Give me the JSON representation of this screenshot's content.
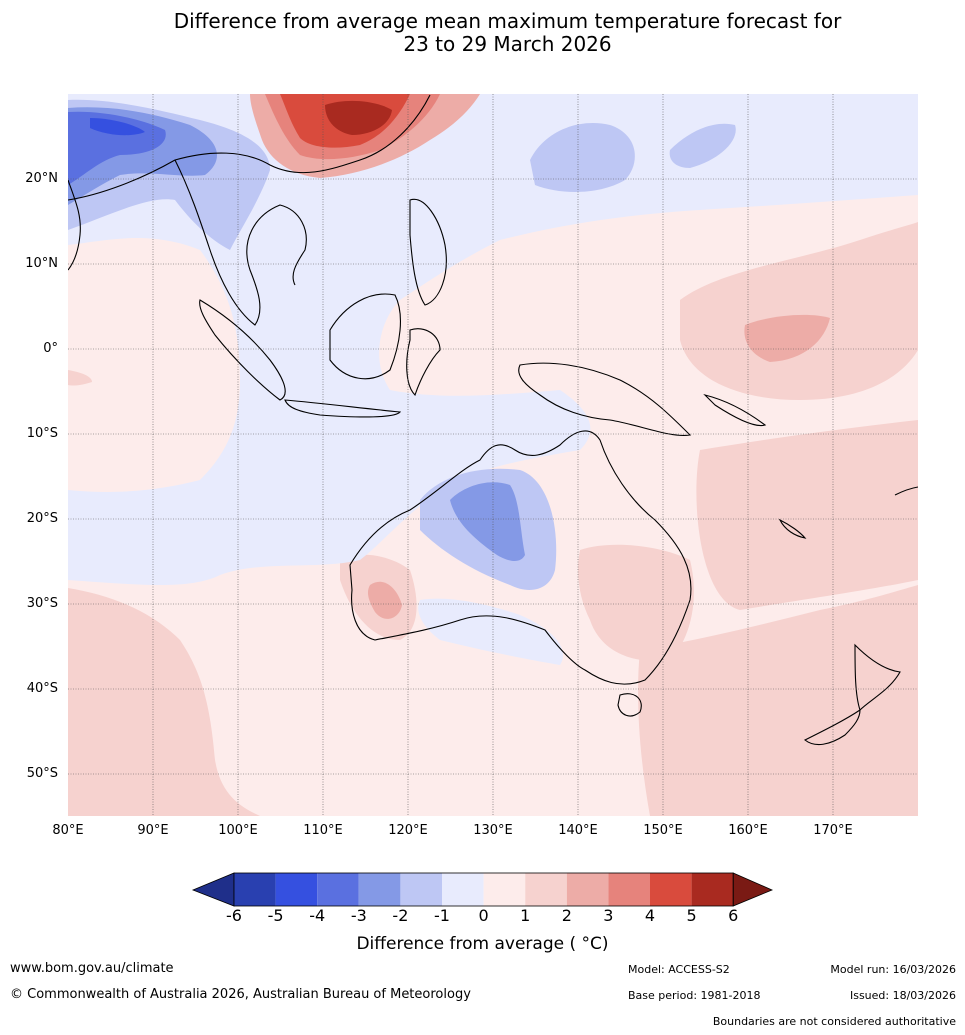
{
  "title": {
    "line1": "Difference from average mean maximum temperature forecast for",
    "line2": "23 to 29 March 2026"
  },
  "map": {
    "lat_labels": [
      "20°N",
      "10°N",
      "0°",
      "10°S",
      "20°S",
      "30°S",
      "40°S",
      "50°S"
    ],
    "lon_labels": [
      "80°E",
      "90°E",
      "100°E",
      "110°E",
      "120°E",
      "130°E",
      "140°E",
      "150°E",
      "160°E",
      "170°E"
    ],
    "lat_range": [
      -55,
      30
    ],
    "lon_range": [
      80,
      180
    ]
  },
  "colorbar": {
    "colors": [
      "#1f2f8a",
      "#2940b0",
      "#3550e0",
      "#5a70e0",
      "#8499e6",
      "#bec7f4",
      "#e8ebfd",
      "#fdeceb",
      "#f6d2cf",
      "#edaca7",
      "#e6837c",
      "#d94b3d",
      "#a92a20",
      "#7a1a14"
    ],
    "ticks": [
      "-6",
      "-5",
      "-4",
      "-3",
      "-2",
      "-1",
      "0",
      "1",
      "2",
      "3",
      "4",
      "5",
      "6"
    ],
    "label": "Difference from average ( °C)"
  },
  "footer": {
    "website": "www.bom.gov.au/climate",
    "copyright": "© Commonwealth of Australia 2026, Australian Bureau of Meteorology",
    "model": "Model: ACCESS-S2",
    "base_period": "Base period: 1981-2018",
    "model_run": "Model run: 16/03/2026",
    "issued": "Issued: 18/03/2026",
    "disclaimer": "Boundaries are not considered authoritative"
  }
}
